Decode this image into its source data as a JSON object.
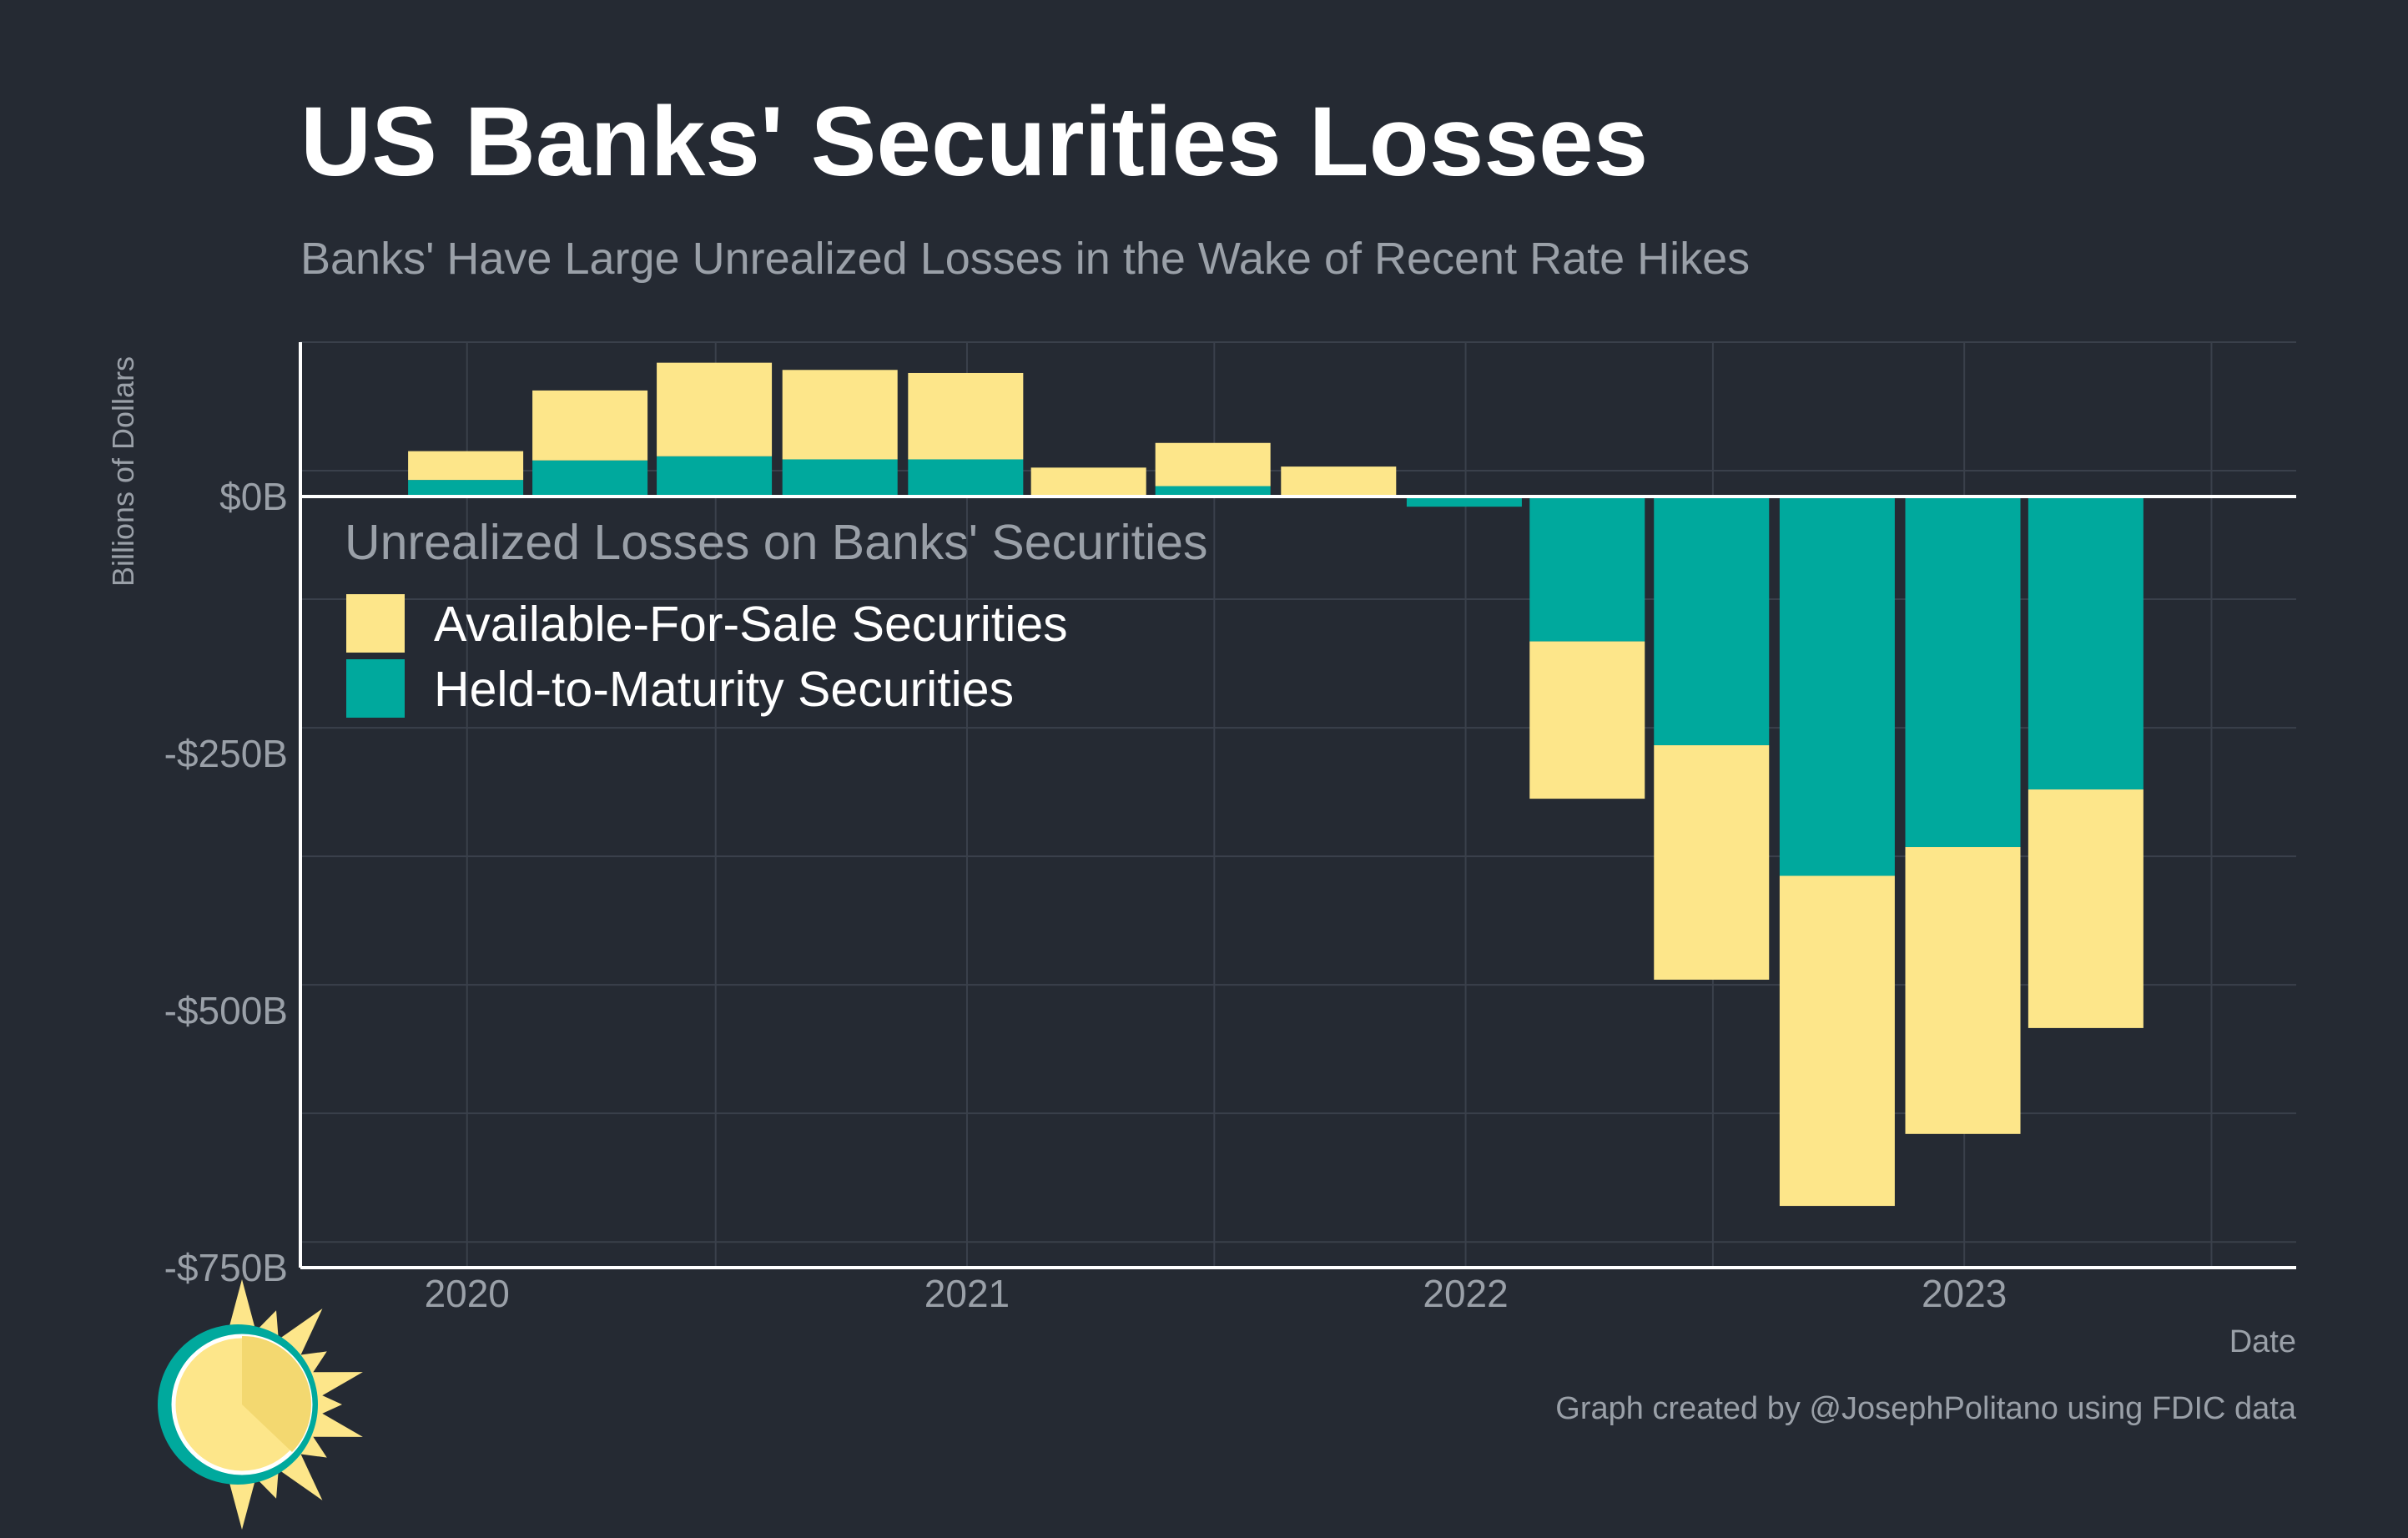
{
  "colors": {
    "background": "#252a33",
    "afs": "#fde68a",
    "htm": "#00a99d",
    "grid": "#3a404b",
    "axis": "#ffffff",
    "muted_text": "#9aa0a8",
    "title_text": "#ffffff"
  },
  "chart_data": {
    "type": "bar",
    "stacked": true,
    "title": "US Banks' Securities Losses",
    "subtitle": "Banks' Have Large Unrealized Losses in the Wake of Recent Rate Hikes",
    "xlabel": "Date",
    "ylabel": "Billions of Dollars",
    "ylim": [
      -750,
      150
    ],
    "yticks": [
      0,
      -250,
      -500,
      -750
    ],
    "ytick_labels": [
      "$0B",
      "-$250B",
      "-$500B",
      "-$750B"
    ],
    "xlim": [
      "2019-09-01",
      "2023-09-01"
    ],
    "xticks": [
      "2020-01-01",
      "2021-01-01",
      "2022-01-01",
      "2023-01-01"
    ],
    "xtick_labels": [
      "2020",
      "2021",
      "2022",
      "2023"
    ],
    "grid": true,
    "legend": {
      "title": "Unrealized Losses on Banks' Securities",
      "position": "top-left",
      "entries": [
        "Available-For-Sale Securities",
        "Held-to-Maturity Securities"
      ]
    },
    "categories": [
      "2019-12-31",
      "2020-03-31",
      "2020-06-30",
      "2020-09-30",
      "2020-12-31",
      "2021-03-31",
      "2021-06-30",
      "2021-09-30",
      "2021-12-31",
      "2022-03-31",
      "2022-06-30",
      "2022-09-30",
      "2022-12-31",
      "2023-03-31"
    ],
    "series": [
      {
        "name": "Held-to-Maturity Securities",
        "values": [
          16,
          35,
          39,
          36,
          36,
          0,
          10,
          1,
          -10,
          -141,
          -242,
          -369,
          -341,
          -285
        ]
      },
      {
        "name": "Available-For-Sale Securities",
        "values": [
          28,
          68,
          91,
          87,
          84,
          28,
          42,
          28,
          0,
          -153,
          -228,
          -321,
          -279,
          -232
        ]
      }
    ]
  },
  "credit": "Graph created by @JosephPolitano using FDIC data"
}
